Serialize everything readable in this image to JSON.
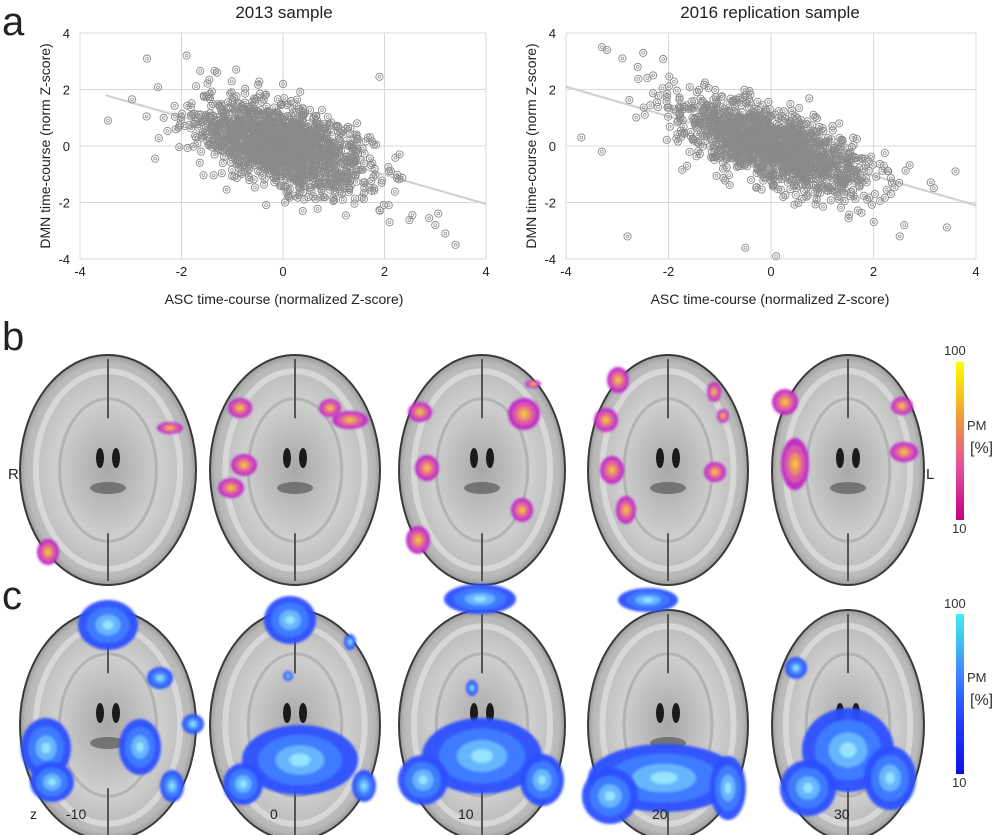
{
  "panel_labels": {
    "a": "a",
    "b": "b",
    "c": "c"
  },
  "chart_data": [
    {
      "type": "scatter",
      "title": "2013 sample",
      "xlabel": "ASC time-course (normalized Z-score)",
      "ylabel": "DMN time-course (norm Z-score)",
      "xlim": [
        -4,
        4
      ],
      "ylim": [
        -4,
        4
      ],
      "xticks": [
        "-4",
        "-2",
        "0",
        "2",
        "4"
      ],
      "yticks": [
        "4",
        "2",
        "0",
        "-2",
        "-4"
      ],
      "grid": true,
      "trend_line": {
        "x": [
          -3.5,
          4
        ],
        "y": [
          1.8,
          -2.05
        ]
      },
      "cloud": {
        "center": [
          0,
          0
        ],
        "spread_x": 0.85,
        "spread_y": 0.8,
        "correlation": -0.5,
        "n_points": 1600
      },
      "highlighted_points": [
        [
          -1.9,
          3.2
        ],
        [
          -3.45,
          0.9
        ],
        [
          1.9,
          2.45
        ],
        [
          3.4,
          -3.5
        ],
        [
          3.2,
          -3.1
        ],
        [
          3.0,
          -2.8
        ],
        [
          -1.3,
          2.6
        ],
        [
          2.1,
          -2.7
        ]
      ],
      "marker": {
        "shape": "open-circle",
        "color": "#8a8a8a"
      },
      "line_color": "#d2d2d2"
    },
    {
      "type": "scatter",
      "title": "2016 replication sample",
      "xlabel": "ASC time-course (normalized Z-score)",
      "ylabel": "DMN time-course (norm Z-score)",
      "xlim": [
        -4,
        4
      ],
      "ylim": [
        -4,
        4
      ],
      "xticks": [
        "-4",
        "-2",
        "0",
        "2",
        "4"
      ],
      "yticks": [
        "4",
        "2",
        "0",
        "-2",
        "-4"
      ],
      "grid": true,
      "trend_line": {
        "x": [
          -4,
          4
        ],
        "y": [
          2.1,
          -2.1
        ]
      },
      "cloud": {
        "center": [
          0,
          0
        ],
        "spread_x": 0.95,
        "spread_y": 0.85,
        "correlation": -0.65,
        "n_points": 1500
      },
      "highlighted_points": [
        [
          -3.3,
          3.5
        ],
        [
          -3.2,
          3.4
        ],
        [
          -2.9,
          3.1
        ],
        [
          -2.6,
          2.8
        ],
        [
          -2.3,
          2.5
        ],
        [
          -3.7,
          0.3
        ],
        [
          -3.3,
          -0.2
        ],
        [
          -2.8,
          -3.2
        ],
        [
          -0.5,
          -3.6
        ],
        [
          0.1,
          -3.9
        ],
        [
          3.6,
          -0.9
        ],
        [
          2.6,
          -2.8
        ]
      ],
      "marker": {
        "shape": "open-circle",
        "color": "#8a8a8a"
      },
      "line_color": "#d2d2d2"
    }
  ],
  "panel_b": {
    "side_labels": {
      "right": "R",
      "left": "L"
    },
    "colorbar": {
      "max": "100",
      "min": "10",
      "label": "PM",
      "unit": "[%]",
      "colors": [
        "#ffff00",
        "#f0a030",
        "#e050a0",
        "#c80080"
      ]
    },
    "blob_colors": [
      "#c028c8",
      "#e060a0",
      "#f0a050",
      "#f8d040"
    ]
  },
  "panel_c": {
    "colorbar": {
      "max": "100",
      "min": "10",
      "label": "PM",
      "unit": "[%]",
      "colors": [
        "#40f0f0",
        "#4090ff",
        "#2040ff",
        "#1010e0"
      ]
    },
    "blob_colors": [
      "#2a50ff",
      "#4080ff",
      "#70c0ff",
      "#a0f0ff"
    ]
  },
  "slice_labels": {
    "axis": "z",
    "values": [
      "-10",
      "0",
      "10",
      "20",
      "30"
    ]
  }
}
